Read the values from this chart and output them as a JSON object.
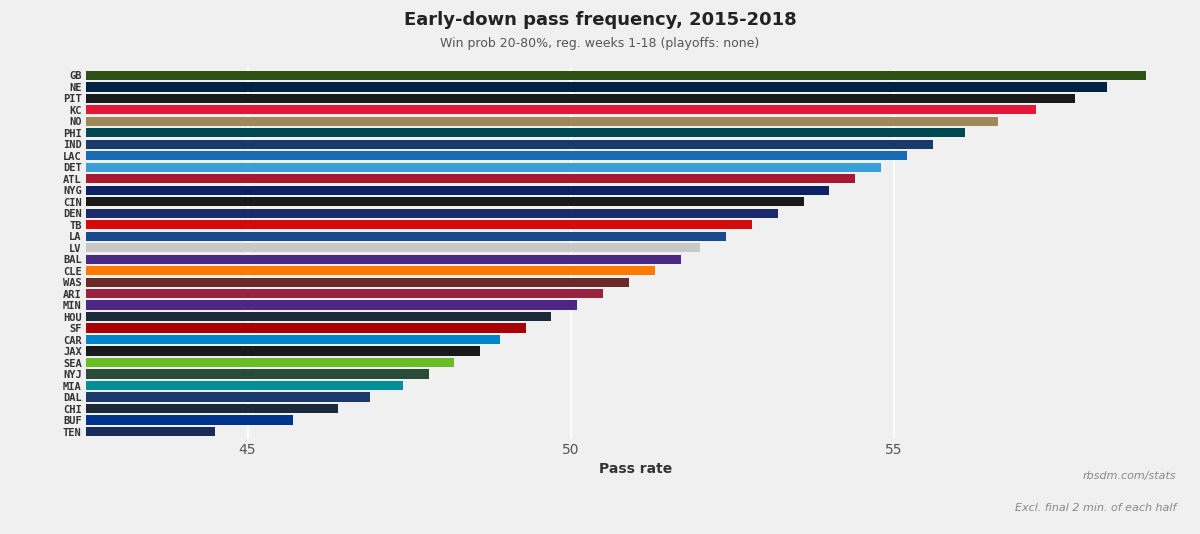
{
  "title": "Early-down pass frequency, 2015-2018",
  "subtitle": "Win prob 20-80%, reg. weeks 1-18 (playoffs: none)",
  "xlabel": "Pass rate",
  "watermark": "rbsdm.com/stats",
  "footnote": "Excl. final 2 min. of each half",
  "background_color": "#f0f0f0",
  "plot_bg_color": "#f0f0f0",
  "xlim": [
    42.5,
    59.5
  ],
  "xticks": [
    45,
    50,
    55
  ],
  "bar_height": 0.82,
  "teams": [
    {
      "abbr": "GB",
      "value": 58.9,
      "color": "#2d5016"
    },
    {
      "abbr": "NE",
      "value": 58.3,
      "color": "#002244"
    },
    {
      "abbr": "PIT",
      "value": 57.8,
      "color": "#1a1a1a"
    },
    {
      "abbr": "KC",
      "value": 57.2,
      "color": "#E31837"
    },
    {
      "abbr": "NO",
      "value": 56.6,
      "color": "#9F8958"
    },
    {
      "abbr": "PHI",
      "value": 56.1,
      "color": "#004953"
    },
    {
      "abbr": "IND",
      "value": 55.6,
      "color": "#1a3a6b"
    },
    {
      "abbr": "LAC",
      "value": 55.2,
      "color": "#1a6bb5"
    },
    {
      "abbr": "DET",
      "value": 54.8,
      "color": "#3a9fd8"
    },
    {
      "abbr": "ATL",
      "value": 54.4,
      "color": "#A71930"
    },
    {
      "abbr": "NYG",
      "value": 54.0,
      "color": "#0B2265"
    },
    {
      "abbr": "CIN",
      "value": 53.6,
      "color": "#1a1a1a"
    },
    {
      "abbr": "DEN",
      "value": 53.2,
      "color": "#1a2a6b"
    },
    {
      "abbr": "TB",
      "value": 52.8,
      "color": "#D50A0A"
    },
    {
      "abbr": "LA",
      "value": 52.4,
      "color": "#1a4a8b"
    },
    {
      "abbr": "LV",
      "value": 52.0,
      "color": "#c8c9c7"
    },
    {
      "abbr": "BAL",
      "value": 51.7,
      "color": "#4b2882"
    },
    {
      "abbr": "CLE",
      "value": 51.3,
      "color": "#FF7A00"
    },
    {
      "abbr": "WAS",
      "value": 50.9,
      "color": "#6b2a2a"
    },
    {
      "abbr": "ARI",
      "value": 50.5,
      "color": "#97233F"
    },
    {
      "abbr": "MIN",
      "value": 50.1,
      "color": "#4F2683"
    },
    {
      "abbr": "HOU",
      "value": 49.7,
      "color": "#1a2a3a"
    },
    {
      "abbr": "SF",
      "value": 49.3,
      "color": "#AA0000"
    },
    {
      "abbr": "CAR",
      "value": 48.9,
      "color": "#0085CA"
    },
    {
      "abbr": "JAX",
      "value": 48.6,
      "color": "#1a1a1a"
    },
    {
      "abbr": "SEA",
      "value": 48.2,
      "color": "#69BE28"
    },
    {
      "abbr": "NYJ",
      "value": 47.8,
      "color": "#2a4a3a"
    },
    {
      "abbr": "MIA",
      "value": 47.4,
      "color": "#008E97"
    },
    {
      "abbr": "DAL",
      "value": 46.9,
      "color": "#1a3a6b"
    },
    {
      "abbr": "CHI",
      "value": 46.4,
      "color": "#1a2a3a"
    },
    {
      "abbr": "BUF",
      "value": 45.7,
      "color": "#00338D"
    },
    {
      "abbr": "TEN",
      "value": 44.5,
      "color": "#1a2a5a"
    }
  ]
}
